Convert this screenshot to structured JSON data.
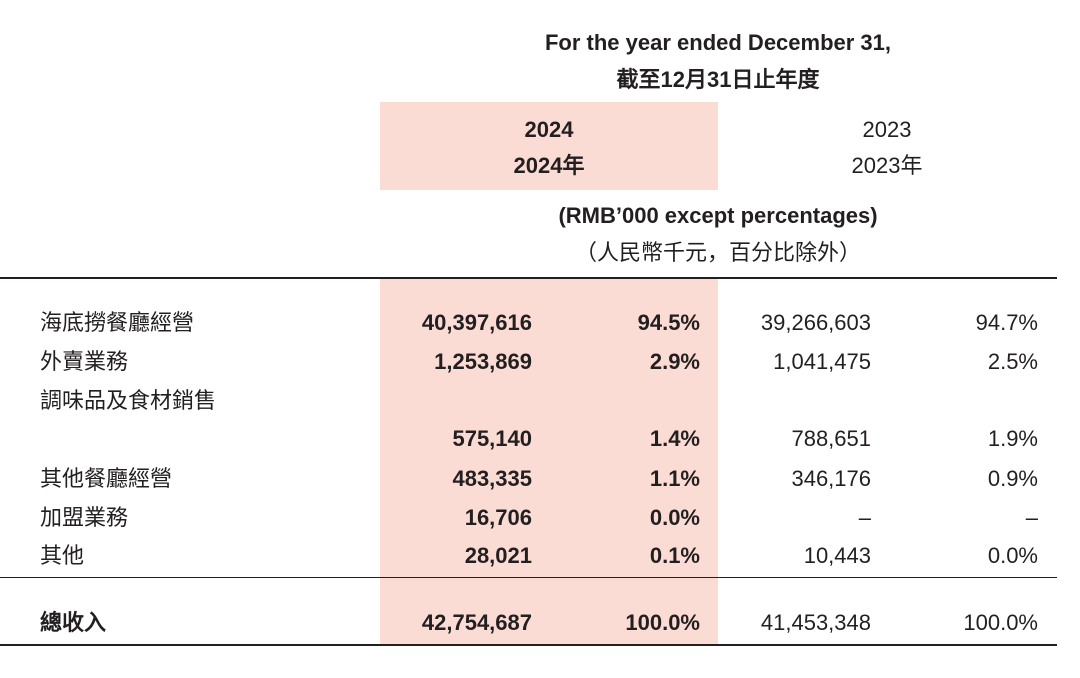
{
  "header": {
    "period_en": "For the year ended December 31,",
    "period_zh": "截至12月31日止年度",
    "year_current_en": "2024",
    "year_current_zh": "2024年",
    "year_prior_en": "2023",
    "year_prior_zh": "2023年",
    "unit_en": "(RMB’000 except percentages)",
    "unit_zh": "（人民幣千元，百分比除外）"
  },
  "rows": [
    {
      "label": "海底撈餐廳經營",
      "amount_2024": "40,397,616",
      "pct_2024": "94.5%",
      "amount_2023": "39,266,603",
      "pct_2023": "94.7%"
    },
    {
      "label": "外賣業務",
      "amount_2024": "1,253,869",
      "pct_2024": "2.9%",
      "amount_2023": "1,041,475",
      "pct_2023": "2.5%"
    },
    {
      "label": "調味品及食材銷售",
      "amount_2024": "575,140",
      "pct_2024": "1.4%",
      "amount_2023": "788,651",
      "pct_2023": "1.9%"
    },
    {
      "label": "其他餐廳經營",
      "amount_2024": "483,335",
      "pct_2024": "1.1%",
      "amount_2023": "346,176",
      "pct_2023": "0.9%"
    },
    {
      "label": "加盟業務",
      "amount_2024": "16,706",
      "pct_2024": "0.0%",
      "amount_2023": "–",
      "pct_2023": "–"
    },
    {
      "label": "其他",
      "amount_2024": "28,021",
      "pct_2024": "0.1%",
      "amount_2023": "10,443",
      "pct_2023": "0.0%"
    }
  ],
  "total": {
    "label": "總收入",
    "amount_2024": "42,754,687",
    "pct_2024": "100.0%",
    "amount_2023": "41,453,348",
    "pct_2023": "100.0%"
  },
  "colors": {
    "highlight": "#fbdcd5",
    "text": "#231f20"
  }
}
